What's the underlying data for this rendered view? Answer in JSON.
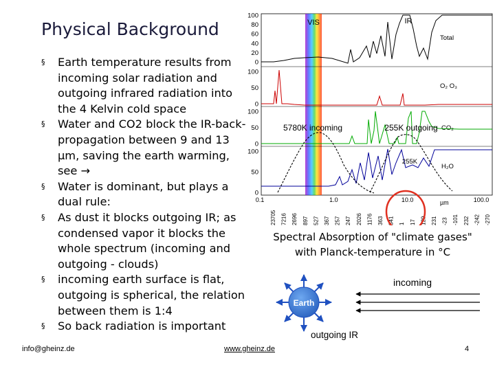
{
  "slide": {
    "title": "Physical Background",
    "bullet_marker": "§",
    "bullets": [
      "Earth temperature results from incoming solar radiation and outgoing infrared radiation into the 4 Kelvin cold space",
      "Water and CO2 block the IR-back-propagation between 9 and 13 µm, saving the earth warming, see →",
      "Water is dominant, but plays a dual rule:",
      "As dust it blocks outgoing IR; as condensed vapor it blocks the whole spectrum (incoming and outgoing - clouds)",
      "incoming earth surface is flat, outgoing is spherical, the relation between them is 1:4",
      "So back radiation is important"
    ],
    "footer_left": "info@gheinz.de",
    "footer_center": "www.gheinz.de",
    "page_number": "4",
    "caption_line1": "Spectral Absorption of \"climate gases\"",
    "caption_line2": "with Planck-temperature in °C"
  },
  "chart_data": {
    "type": "line",
    "title": "",
    "band_labels": {
      "vis": "VIS",
      "ir": "IR"
    },
    "panels": [
      {
        "label": "Total",
        "ticks": [
          "100",
          "80",
          "60",
          "40",
          "20",
          "0"
        ]
      },
      {
        "label": "O₂ O₃",
        "ticks": [
          "100",
          "50",
          "0"
        ]
      },
      {
        "label": "CO₂",
        "ticks": [
          "100",
          "50",
          "0"
        ]
      },
      {
        "label": "H₂O",
        "ticks": [
          "100",
          "50",
          "0"
        ]
      }
    ],
    "x_axis": {
      "scale": "log",
      "unit": "µm",
      "ticks": [
        "0.1",
        "1.0",
        "10.0",
        "100.0"
      ]
    },
    "x_labels_rotated": [
      "23705",
      "7216",
      "2696",
      "897",
      "527",
      "367",
      "257",
      "247",
      "2026",
      "1176",
      "363",
      "341",
      "1",
      "17",
      "129",
      "231",
      "-23",
      "-101",
      "232",
      "-242",
      "-270"
    ],
    "annotations": [
      "5780K incoming",
      "255K outgoing",
      "255K"
    ],
    "highlight": "9–13 µm atmospheric window"
  },
  "diagram": {
    "earth_label": "Earth",
    "incoming_label": "incoming",
    "outgoing_label": "outgoing IR"
  },
  "colors": {
    "title": "#1a1a3a",
    "o2o3_curve": "#cc0000",
    "co2_curve": "#00aa00",
    "h2o_curve": "#000099",
    "highlight_circle": "#e03020",
    "earth_fill": "#3b7dd8",
    "arrow_blue": "#1f50c0"
  }
}
